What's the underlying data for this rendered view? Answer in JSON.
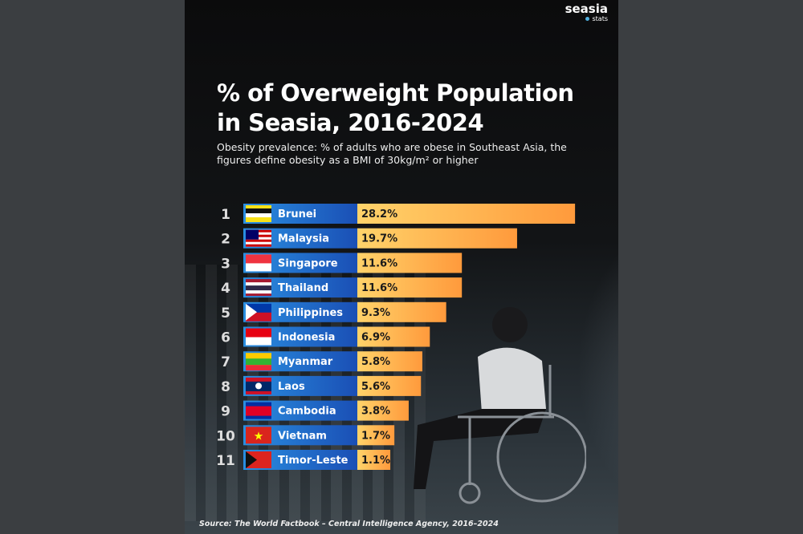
{
  "logo": {
    "name": "seasia",
    "sub": "stats"
  },
  "title_line1": "% of Overweight Population",
  "title_line2": "in Seasia, 2016-2024",
  "subtitle": "Obesity prevalence: % of adults who are obese in Southeast Asia, the figures define obesity as a BMI of 30kg/m² or higher",
  "source": "Source: The World Factbook – Central Intelligence Agency, 2016–2024",
  "colors": {
    "label_bar": "#1e63c4",
    "value_bar_start": "#ffd36a",
    "value_bar_end": "#ff9a3c"
  },
  "chart_data": {
    "type": "bar",
    "orientation": "horizontal",
    "ranks": [
      "1",
      "2",
      "3",
      "4",
      "5",
      "6",
      "7",
      "8",
      "9",
      "10",
      "11"
    ],
    "categories": [
      "Brunei",
      "Malaysia",
      "Singapore",
      "Thailand",
      "Philippines",
      "Indonesia",
      "Myanmar",
      "Laos",
      "Cambodia",
      "Vietnam",
      "Timor-Leste"
    ],
    "values": [
      28.2,
      19.7,
      11.6,
      11.6,
      9.3,
      6.9,
      5.8,
      5.6,
      3.8,
      1.7,
      1.1
    ],
    "labels": [
      "28.2%",
      "19.7%",
      "11.6%",
      "11.6%",
      "9.3%",
      "6.9%",
      "5.8%",
      "5.6%",
      "3.8%",
      "1.7%",
      "1.1%"
    ],
    "flag_icons": [
      "brunei-flag",
      "malaysia-flag",
      "singapore-flag",
      "thailand-flag",
      "philippines-flag",
      "indonesia-flag",
      "myanmar-flag",
      "laos-flag",
      "cambodia-flag",
      "vietnam-flag",
      "timor-leste-flag"
    ]
  }
}
